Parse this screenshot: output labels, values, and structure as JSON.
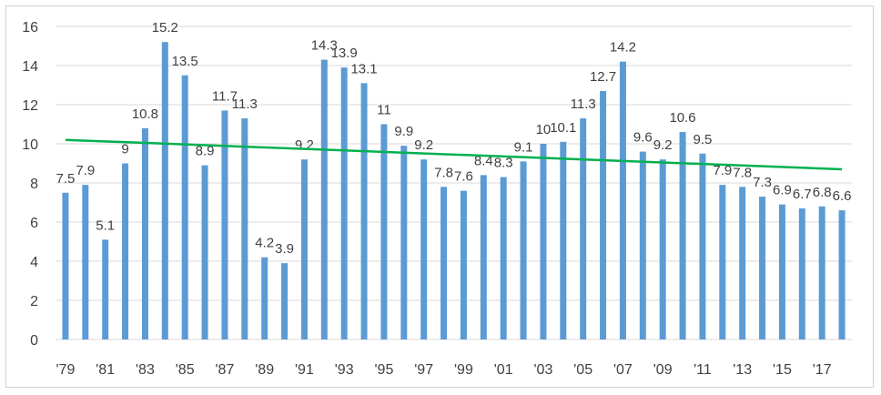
{
  "chart_data": {
    "type": "bar",
    "categories": [
      "'79",
      "'80",
      "'81",
      "'82",
      "'83",
      "'84",
      "'85",
      "'86",
      "'87",
      "'88",
      "'89",
      "'90",
      "'91",
      "'92",
      "'93",
      "'94",
      "'95",
      "'96",
      "'97",
      "'98",
      "'99",
      "'00",
      "'01",
      "'02",
      "'03",
      "'04",
      "'05",
      "'06",
      "'07",
      "'08",
      "'09",
      "'10",
      "'11",
      "'12",
      "'13",
      "'14",
      "'15",
      "'16",
      "'17",
      "'18"
    ],
    "x_tick_labels": [
      "'79",
      "'81",
      "'83",
      "'85",
      "'87",
      "'89",
      "'91",
      "'93",
      "'95",
      "'97",
      "'99",
      "'01",
      "'03",
      "'05",
      "'07",
      "'09",
      "'11",
      "'13",
      "'15",
      "'17"
    ],
    "series": [
      {
        "values": [
          7.5,
          7.9,
          5.1,
          9,
          10.8,
          15.2,
          13.5,
          8.9,
          11.7,
          11.3,
          4.2,
          3.9,
          9.2,
          14.3,
          13.9,
          13.1,
          11,
          9.9,
          9.2,
          7.8,
          7.6,
          8.4,
          8.3,
          9.1,
          10,
          10.1,
          11.3,
          12.7,
          14.2,
          9.6,
          9.2,
          10.6,
          9.5,
          7.9,
          7.8,
          7.3,
          6.9,
          6.7,
          6.8,
          6.6
        ],
        "data_labels": [
          "7.5",
          "7.9",
          "5.1",
          "9",
          "10.8",
          "15.2",
          "13.5",
          "8.9",
          "11.7",
          "11.3",
          "4.2",
          "3.9",
          "9.2",
          "14.3",
          "13.9",
          "13.1",
          "11",
          "9.9",
          "9.2",
          "7.8",
          "7.6",
          "8.4",
          "8.3",
          "9.1",
          "10",
          "10.1",
          "11.3",
          "12.7",
          "14.2",
          "9.6",
          "9.2",
          "10.6",
          "9.5",
          "7.9",
          "7.8",
          "7.3",
          "6.9",
          "6.7",
          "6.8",
          "6.6"
        ],
        "color": "#5b9bd5"
      }
    ],
    "trendline": {
      "type": "linear",
      "start": 10.2,
      "end": 8.7,
      "color": "#00b050"
    },
    "title": "",
    "xlabel": "",
    "ylabel": "",
    "ylim": [
      0,
      16
    ],
    "y_ticks": [
      0,
      2,
      4,
      6,
      8,
      10,
      12,
      14,
      16
    ],
    "grid": true,
    "gridline_color": "#d9d9d9",
    "legend": "none"
  }
}
